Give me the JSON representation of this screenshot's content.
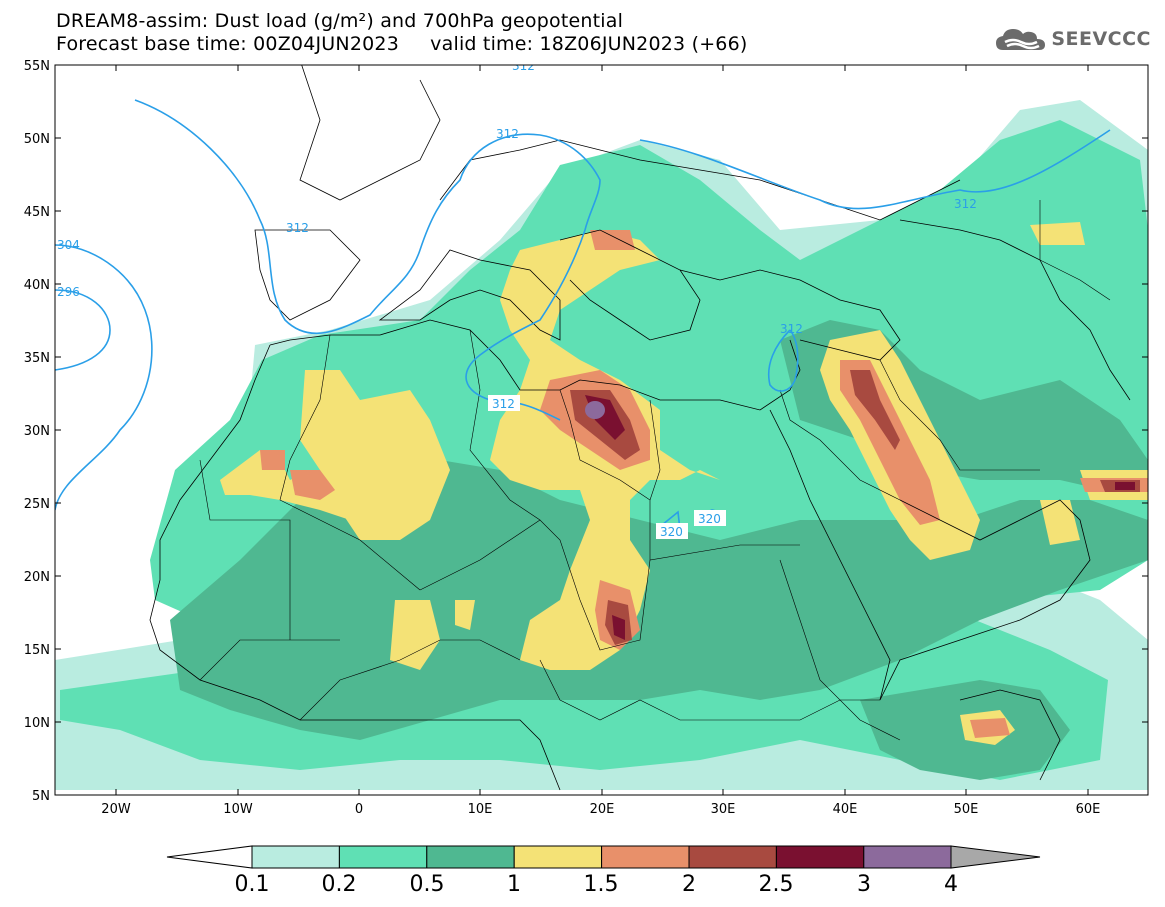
{
  "header": {
    "title_line1": "DREAM8-assim: Dust load (g/m²) and 700hPa geopotential",
    "title_line2": "Forecast base time: 00Z04JUN2023     valid time: 18Z06JUN2023 (+66)"
  },
  "logo": {
    "text": "SEEVCCC",
    "icon": "cloud-icon"
  },
  "axes": {
    "lat_labels": [
      "55N",
      "50N",
      "45N",
      "40N",
      "35N",
      "30N",
      "25N",
      "20N",
      "15N",
      "10N",
      "5N"
    ],
    "lon_labels": [
      "20W",
      "10W",
      "0",
      "10E",
      "20E",
      "30E",
      "40E",
      "50E",
      "60E"
    ]
  },
  "colorbar": {
    "labels": [
      "0.1",
      "0.2",
      "0.5",
      "1",
      "1.5",
      "2",
      "2.5",
      "3",
      "4"
    ],
    "colors": [
      "#b9ece0",
      "#5fe0b4",
      "#4fb891",
      "#f4e276",
      "#e8906a",
      "#a84a40",
      "#7a1030",
      "#8c6a9c",
      "#a8a8a8"
    ]
  },
  "contour_labels": [
    "312",
    "312",
    "312",
    "312",
    "312",
    "312",
    "304",
    "296",
    "320",
    "320"
  ],
  "colors": {
    "contour": "#2a9fe8",
    "background": "#ffffff",
    "coast": "#000000"
  }
}
